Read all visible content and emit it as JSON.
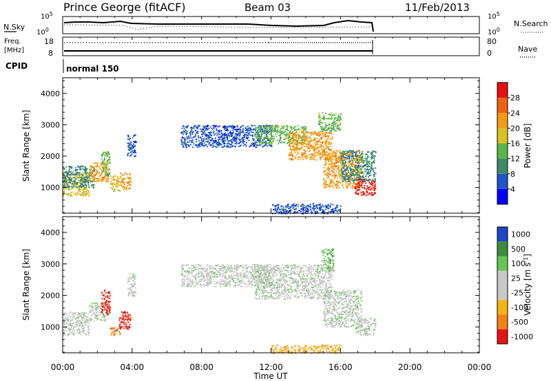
{
  "header": {
    "station": "Prince George (fitACF)",
    "beam": "Beam 03",
    "date": "11/Feb/2013"
  },
  "status_panels": {
    "nsky_label": "N.Sky",
    "nsearch_label": "N.Search",
    "freq_label_1": "Freq.",
    "freq_label_2": "[MHz]",
    "nave_label": "Nave",
    "cpid_label": "CPID",
    "cpid_value": "normal 150",
    "noise_ticks": [
      "10^5",
      "10^0"
    ],
    "noise_ticks_right": [
      "10^5",
      "10^0"
    ],
    "freq_ticks": [
      "18",
      "8"
    ],
    "nave_ticks": [
      "80",
      "0"
    ]
  },
  "chart_data": [
    {
      "type": "heatmap",
      "title": "",
      "xlabel": "Time UT",
      "ylabel": "Slant Range [km]",
      "x_ticks": [
        "00:00",
        "04:00",
        "08:00",
        "12:00",
        "16:00",
        "20:00",
        "00:00"
      ],
      "x_range_hours": [
        0,
        24
      ],
      "y_ticks": [
        1000,
        2000,
        3000,
        4000
      ],
      "ylim": [
        180,
        4500
      ],
      "colorbar": {
        "label": "Power [dB]",
        "ticks": [
          4,
          8,
          12,
          16,
          20,
          24,
          28
        ],
        "range": [
          0,
          32
        ],
        "colors": [
          "#0000ff",
          "#1e56c8",
          "#3d8a6a",
          "#58b848",
          "#dcc020",
          "#f59a15",
          "#f06010",
          "#e61010"
        ]
      },
      "echo_regions": [
        {
          "t0": 0.0,
          "t1": 1.5,
          "r0": 750,
          "r1": 1500,
          "level": 4
        },
        {
          "t0": 0.0,
          "t1": 1.8,
          "r0": 1000,
          "r1": 1700,
          "level": 2
        },
        {
          "t0": 1.5,
          "t1": 2.6,
          "r0": 1200,
          "r1": 1800,
          "level": 5
        },
        {
          "t0": 2.2,
          "t1": 2.7,
          "r0": 1400,
          "r1": 2200,
          "level": 3
        },
        {
          "t0": 2.7,
          "t1": 3.3,
          "r0": 900,
          "r1": 1400,
          "level": 4
        },
        {
          "t0": 3.3,
          "t1": 3.9,
          "r0": 950,
          "r1": 1500,
          "level": 5
        },
        {
          "t0": 3.7,
          "t1": 4.2,
          "r0": 2000,
          "r1": 2700,
          "level": 1
        },
        {
          "t0": 6.8,
          "t1": 12.0,
          "r0": 2300,
          "r1": 3000,
          "level": 1
        },
        {
          "t0": 11.0,
          "t1": 14.0,
          "r0": 2400,
          "r1": 3000,
          "level": 3
        },
        {
          "t0": 13.0,
          "t1": 15.5,
          "r0": 1900,
          "r1": 2800,
          "level": 5
        },
        {
          "t0": 15.0,
          "t1": 17.2,
          "r0": 1000,
          "r1": 2200,
          "level": 5
        },
        {
          "t0": 14.7,
          "t1": 16.0,
          "r0": 2800,
          "r1": 3400,
          "level": 3
        },
        {
          "t0": 16.8,
          "t1": 18.0,
          "r0": 750,
          "r1": 1300,
          "level": 7
        },
        {
          "t0": 16.0,
          "t1": 18.0,
          "r0": 1200,
          "r1": 2200,
          "level": 2
        },
        {
          "t0": 12.0,
          "t1": 16.0,
          "r0": 180,
          "r1": 500,
          "level": 1
        }
      ]
    },
    {
      "type": "heatmap",
      "title": "",
      "xlabel": "Time UT",
      "ylabel": "Slant Range [km]",
      "x_ticks": [
        "00:00",
        "04:00",
        "08:00",
        "12:00",
        "16:00",
        "20:00",
        "00:00"
      ],
      "x_range_hours": [
        0,
        24
      ],
      "y_ticks": [
        1000,
        2000,
        3000,
        4000
      ],
      "ylim": [
        180,
        4500
      ],
      "colorbar": {
        "label": "Velocity [m s^-1]",
        "ticks": [
          1000,
          500,
          100,
          25,
          -25,
          -100,
          -500,
          -1000
        ],
        "colors": [
          "#1e46c8",
          "#3c8c3c",
          "#64c850",
          "#c8c8c8",
          "#c8c8c8",
          "#f5b414",
          "#f08214",
          "#e61414"
        ]
      },
      "echo_regions": [
        {
          "t0": 0.0,
          "t1": 1.5,
          "r0": 750,
          "r1": 1500,
          "level": 3
        },
        {
          "t0": 1.5,
          "t1": 2.6,
          "r0": 1200,
          "r1": 1800,
          "level": 3
        },
        {
          "t0": 2.2,
          "t1": 2.7,
          "r0": 1400,
          "r1": 2200,
          "level": 7
        },
        {
          "t0": 2.7,
          "t1": 3.3,
          "r0": 750,
          "r1": 1000,
          "level": 6
        },
        {
          "t0": 3.2,
          "t1": 3.9,
          "r0": 950,
          "r1": 1500,
          "level": 7
        },
        {
          "t0": 3.7,
          "t1": 4.2,
          "r0": 2000,
          "r1": 2700,
          "level": 3
        },
        {
          "t0": 6.8,
          "t1": 12.0,
          "r0": 2300,
          "r1": 3000,
          "level": 3
        },
        {
          "t0": 11.0,
          "t1": 15.5,
          "r0": 1900,
          "r1": 3000,
          "level": 3
        },
        {
          "t0": 15.0,
          "t1": 17.2,
          "r0": 1000,
          "r1": 2200,
          "level": 3
        },
        {
          "t0": 14.9,
          "t1": 15.6,
          "r0": 2800,
          "r1": 3500,
          "level": 2
        },
        {
          "t0": 16.8,
          "t1": 18.0,
          "r0": 750,
          "r1": 1300,
          "level": 3
        },
        {
          "t0": 12.0,
          "t1": 16.0,
          "r0": 180,
          "r1": 450,
          "level": 5
        }
      ]
    }
  ]
}
